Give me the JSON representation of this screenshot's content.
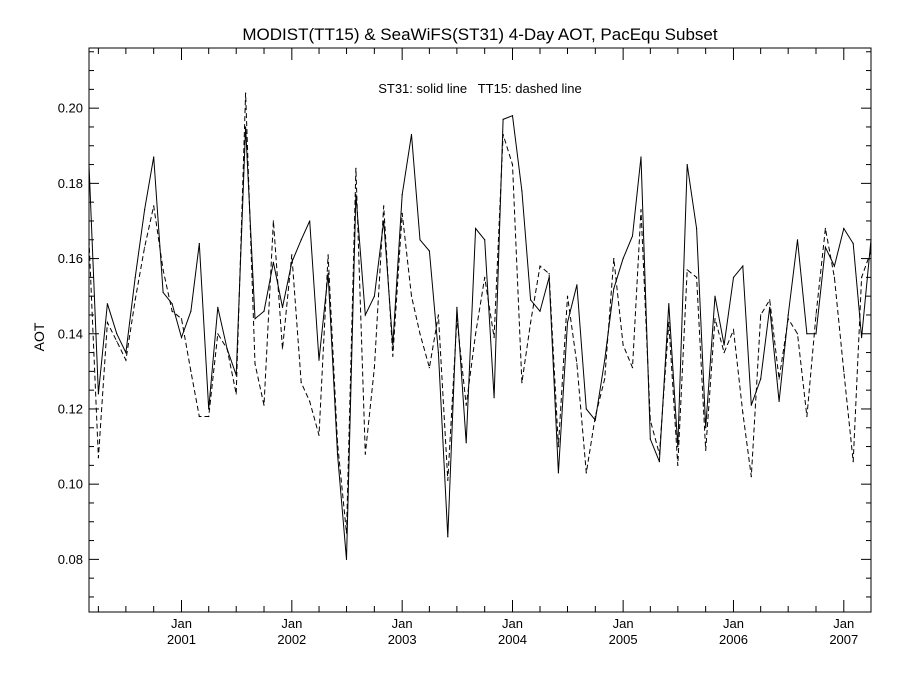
{
  "chart_data": {
    "type": "line",
    "title": "MODIST(TT15) & SeaWiFS(ST31) 4-Day AOT, PacEqu Subset",
    "annotation": "ST31: solid line   TT15: dashed line",
    "xlabel": "",
    "ylabel": "AOT",
    "xlim": [
      "2000-03-01",
      "2007-04-01"
    ],
    "ylim": [
      0.066,
      0.216
    ],
    "yticks": [
      0.08,
      0.1,
      0.12,
      0.14,
      0.16,
      0.18,
      0.2
    ],
    "ytick_labels": [
      "0.08",
      "0.10",
      "0.12",
      "0.14",
      "0.16",
      "0.18",
      "0.20"
    ],
    "xticks": [
      {
        "date": "2001-01-01",
        "month": "Jan",
        "year": "2001"
      },
      {
        "date": "2002-01-01",
        "month": "Jan",
        "year": "2002"
      },
      {
        "date": "2003-01-01",
        "month": "Jan",
        "year": "2003"
      },
      {
        "date": "2004-01-01",
        "month": "Jan",
        "year": "2004"
      },
      {
        "date": "2005-01-01",
        "month": "Jan",
        "year": "2005"
      },
      {
        "date": "2006-01-01",
        "month": "Jan",
        "year": "2006"
      },
      {
        "date": "2007-01-01",
        "month": "Jan",
        "year": "2007"
      }
    ],
    "grid": false,
    "legend": "none",
    "series": [
      {
        "style": "solid",
        "color": "#000000",
        "points": [
          [
            "2000-03-01",
            0.185
          ],
          [
            "2000-04-01",
            0.124
          ],
          [
            "2000-05-01",
            0.148
          ],
          [
            "2000-06-01",
            0.14
          ],
          [
            "2000-07-01",
            0.135
          ],
          [
            "2000-08-01",
            0.155
          ],
          [
            "2000-09-01",
            0.173
          ],
          [
            "2000-10-01",
            0.187
          ],
          [
            "2000-11-01",
            0.151
          ],
          [
            "2000-12-01",
            0.148
          ],
          [
            "2001-01-01",
            0.139
          ],
          [
            "2001-02-01",
            0.146
          ],
          [
            "2001-03-01",
            0.164
          ],
          [
            "2001-04-01",
            0.12
          ],
          [
            "2001-05-01",
            0.147
          ],
          [
            "2001-06-01",
            0.136
          ],
          [
            "2001-07-01",
            0.129
          ],
          [
            "2001-08-01",
            0.195
          ],
          [
            "2001-09-01",
            0.144
          ],
          [
            "2001-10-01",
            0.146
          ],
          [
            "2001-11-01",
            0.159
          ],
          [
            "2001-12-01",
            0.147
          ],
          [
            "2002-01-01",
            0.159
          ],
          [
            "2002-02-01",
            0.165
          ],
          [
            "2002-03-01",
            0.17
          ],
          [
            "2002-04-01",
            0.133
          ],
          [
            "2002-05-01",
            0.156
          ],
          [
            "2002-06-01",
            0.108
          ],
          [
            "2002-07-01",
            0.08
          ],
          [
            "2002-08-01",
            0.177
          ],
          [
            "2002-09-01",
            0.145
          ],
          [
            "2002-10-01",
            0.15
          ],
          [
            "2002-11-01",
            0.17
          ],
          [
            "2002-12-01",
            0.137
          ],
          [
            "2003-01-01",
            0.177
          ],
          [
            "2003-02-01",
            0.193
          ],
          [
            "2003-03-01",
            0.165
          ],
          [
            "2003-04-01",
            0.162
          ],
          [
            "2003-05-01",
            0.135
          ],
          [
            "2003-06-01",
            0.086
          ],
          [
            "2003-07-01",
            0.147
          ],
          [
            "2003-08-01",
            0.111
          ],
          [
            "2003-09-01",
            0.168
          ],
          [
            "2003-10-01",
            0.165
          ],
          [
            "2003-11-01",
            0.123
          ],
          [
            "2003-12-01",
            0.197
          ],
          [
            "2004-01-01",
            0.198
          ],
          [
            "2004-02-01",
            0.178
          ],
          [
            "2004-03-01",
            0.149
          ],
          [
            "2004-04-01",
            0.146
          ],
          [
            "2004-05-01",
            0.155
          ],
          [
            "2004-06-01",
            0.103
          ],
          [
            "2004-07-01",
            0.143
          ],
          [
            "2004-08-01",
            0.153
          ],
          [
            "2004-09-01",
            0.12
          ],
          [
            "2004-10-01",
            0.117
          ],
          [
            "2004-11-01",
            0.133
          ],
          [
            "2004-12-01",
            0.152
          ],
          [
            "2005-01-01",
            0.16
          ],
          [
            "2005-02-01",
            0.166
          ],
          [
            "2005-03-01",
            0.187
          ],
          [
            "2005-04-01",
            0.112
          ],
          [
            "2005-05-01",
            0.106
          ],
          [
            "2005-06-01",
            0.148
          ],
          [
            "2005-07-01",
            0.11
          ],
          [
            "2005-08-01",
            0.185
          ],
          [
            "2005-09-01",
            0.168
          ],
          [
            "2005-10-01",
            0.115
          ],
          [
            "2005-11-01",
            0.15
          ],
          [
            "2005-12-01",
            0.137
          ],
          [
            "2006-01-01",
            0.155
          ],
          [
            "2006-02-01",
            0.158
          ],
          [
            "2006-03-01",
            0.121
          ],
          [
            "2006-04-01",
            0.128
          ],
          [
            "2006-05-01",
            0.147
          ],
          [
            "2006-06-01",
            0.122
          ],
          [
            "2006-07-01",
            0.145
          ],
          [
            "2006-08-01",
            0.165
          ],
          [
            "2006-09-01",
            0.14
          ],
          [
            "2006-10-01",
            0.14
          ],
          [
            "2006-11-01",
            0.163
          ],
          [
            "2006-12-01",
            0.158
          ],
          [
            "2007-01-01",
            0.168
          ],
          [
            "2007-02-01",
            0.164
          ],
          [
            "2007-03-01",
            0.139
          ],
          [
            "2007-04-01",
            0.165
          ]
        ]
      },
      {
        "style": "dashed",
        "color": "#000000",
        "points": [
          [
            "2000-03-01",
            0.165
          ],
          [
            "2000-04-01",
            0.107
          ],
          [
            "2000-05-01",
            0.143
          ],
          [
            "2000-06-01",
            0.138
          ],
          [
            "2000-07-01",
            0.133
          ],
          [
            "2000-08-01",
            0.149
          ],
          [
            "2000-09-01",
            0.163
          ],
          [
            "2000-10-01",
            0.174
          ],
          [
            "2000-11-01",
            0.157
          ],
          [
            "2000-12-01",
            0.146
          ],
          [
            "2001-01-01",
            0.144
          ],
          [
            "2001-02-01",
            0.13
          ],
          [
            "2001-03-01",
            0.118
          ],
          [
            "2001-04-01",
            0.118
          ],
          [
            "2001-05-01",
            0.14
          ],
          [
            "2001-06-01",
            0.136
          ],
          [
            "2001-07-01",
            0.124
          ],
          [
            "2001-08-01",
            0.204
          ],
          [
            "2001-09-01",
            0.132
          ],
          [
            "2001-10-01",
            0.121
          ],
          [
            "2001-11-01",
            0.17
          ],
          [
            "2001-12-01",
            0.136
          ],
          [
            "2002-01-01",
            0.161
          ],
          [
            "2002-02-01",
            0.127
          ],
          [
            "2002-03-01",
            0.122
          ],
          [
            "2002-04-01",
            0.113
          ],
          [
            "2002-05-01",
            0.161
          ],
          [
            "2002-06-01",
            0.111
          ],
          [
            "2002-07-01",
            0.087
          ],
          [
            "2002-08-01",
            0.184
          ],
          [
            "2002-09-01",
            0.108
          ],
          [
            "2002-10-01",
            0.131
          ],
          [
            "2002-11-01",
            0.174
          ],
          [
            "2002-12-01",
            0.134
          ],
          [
            "2003-01-01",
            0.172
          ],
          [
            "2003-02-01",
            0.15
          ],
          [
            "2003-03-01",
            0.14
          ],
          [
            "2003-04-01",
            0.131
          ],
          [
            "2003-05-01",
            0.145
          ],
          [
            "2003-06-01",
            0.101
          ],
          [
            "2003-07-01",
            0.144
          ],
          [
            "2003-08-01",
            0.121
          ],
          [
            "2003-09-01",
            0.14
          ],
          [
            "2003-10-01",
            0.155
          ],
          [
            "2003-11-01",
            0.139
          ],
          [
            "2003-12-01",
            0.193
          ],
          [
            "2004-01-01",
            0.185
          ],
          [
            "2004-02-01",
            0.127
          ],
          [
            "2004-03-01",
            0.143
          ],
          [
            "2004-04-01",
            0.158
          ],
          [
            "2004-05-01",
            0.156
          ],
          [
            "2004-06-01",
            0.11
          ],
          [
            "2004-07-01",
            0.15
          ],
          [
            "2004-08-01",
            0.132
          ],
          [
            "2004-09-01",
            0.103
          ],
          [
            "2004-10-01",
            0.118
          ],
          [
            "2004-11-01",
            0.128
          ],
          [
            "2004-12-01",
            0.16
          ],
          [
            "2005-01-01",
            0.137
          ],
          [
            "2005-02-01",
            0.131
          ],
          [
            "2005-03-01",
            0.173
          ],
          [
            "2005-04-01",
            0.117
          ],
          [
            "2005-05-01",
            0.108
          ],
          [
            "2005-06-01",
            0.143
          ],
          [
            "2005-07-01",
            0.105
          ],
          [
            "2005-08-01",
            0.157
          ],
          [
            "2005-09-01",
            0.155
          ],
          [
            "2005-10-01",
            0.109
          ],
          [
            "2005-11-01",
            0.144
          ],
          [
            "2005-12-01",
            0.135
          ],
          [
            "2006-01-01",
            0.141
          ],
          [
            "2006-02-01",
            0.119
          ],
          [
            "2006-03-01",
            0.102
          ],
          [
            "2006-04-01",
            0.145
          ],
          [
            "2006-05-01",
            0.149
          ],
          [
            "2006-06-01",
            0.128
          ],
          [
            "2006-07-01",
            0.144
          ],
          [
            "2006-08-01",
            0.14
          ],
          [
            "2006-09-01",
            0.118
          ],
          [
            "2006-10-01",
            0.145
          ],
          [
            "2006-11-01",
            0.168
          ],
          [
            "2006-12-01",
            0.155
          ],
          [
            "2007-01-01",
            0.13
          ],
          [
            "2007-02-01",
            0.106
          ],
          [
            "2007-03-01",
            0.155
          ],
          [
            "2007-04-01",
            0.162
          ]
        ]
      }
    ]
  }
}
